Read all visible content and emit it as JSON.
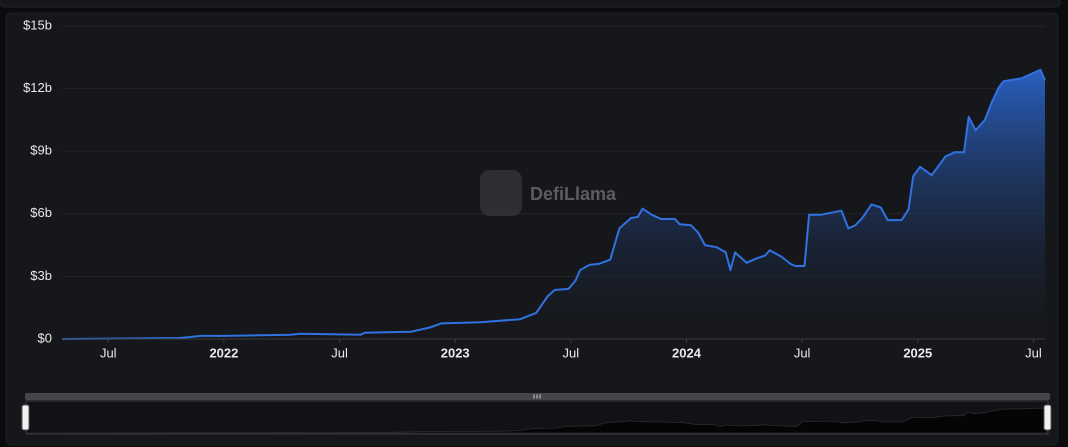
{
  "chart_data": {
    "type": "area",
    "watermark": "DefiLlama",
    "color": "#2f72e0",
    "grid": true,
    "xlim": [
      2021.3,
      2025.55
    ],
    "ylim": [
      0,
      15
    ],
    "xticks": [
      {
        "value": 2021.5,
        "label": "Jul"
      },
      2022,
      {
        "value": 2022.5,
        "label": "Jul"
      },
      2023,
      {
        "value": 2023.5,
        "label": "Jul"
      },
      2024,
      {
        "value": 2024.5,
        "label": "Jul"
      },
      2025,
      {
        "value": 2025.5,
        "label": "Jul"
      }
    ],
    "yticks": [
      {
        "value": 0,
        "label": "$0"
      },
      {
        "value": 3,
        "label": "$3b"
      },
      {
        "value": 6,
        "label": "$6b"
      },
      {
        "value": 9,
        "label": "$9b"
      },
      {
        "value": 12,
        "label": "$12b"
      },
      {
        "value": 15,
        "label": "$15b"
      }
    ],
    "x": [
      2021.3,
      2021.81,
      2021.9,
      2022,
      2022.29,
      2022.33,
      2022.59,
      2022.61,
      2022.81,
      2022.89,
      2022.94,
      2023.11,
      2023.28,
      2023.35,
      2023.4,
      2023.43,
      2023.49,
      2023.52,
      2023.54,
      2023.58,
      2023.62,
      2023.67,
      2023.71,
      2023.76,
      2023.79,
      2023.81,
      2023.85,
      2023.89,
      2023.95,
      2023.97,
      2024.02,
      2024.05,
      2024.08,
      2024.13,
      2024.17,
      2024.19,
      2024.21,
      2024.26,
      2024.3,
      2024.34,
      2024.36,
      2024.41,
      2024.45,
      2024.47,
      2024.51,
      2024.53,
      2024.58,
      2024.67,
      2024.7,
      2024.73,
      2024.76,
      2024.8,
      2024.84,
      2024.87,
      2024.93,
      2024.96,
      2024.98,
      2025.01,
      2025.06,
      2025.12,
      2025.16,
      2025.2,
      2025.22,
      2025.25,
      2025.29,
      2025.32,
      2025.35,
      2025.37,
      2025.45,
      2025.53,
      2025.55
    ],
    "values": [
      0,
      0.05,
      0.15,
      0.15,
      0.2,
      0.25,
      0.2,
      0.3,
      0.35,
      0.55,
      0.75,
      0.8,
      0.95,
      1.25,
      2.05,
      2.35,
      2.4,
      2.8,
      3.3,
      3.55,
      3.6,
      3.8,
      5.3,
      5.8,
      5.85,
      6.25,
      5.95,
      5.75,
      5.75,
      5.5,
      5.45,
      5.1,
      4.5,
      4.4,
      4.15,
      3.3,
      4.15,
      3.65,
      3.85,
      4.0,
      4.25,
      3.95,
      3.6,
      3.5,
      3.5,
      5.95,
      5.95,
      6.15,
      5.3,
      5.45,
      5.8,
      6.45,
      6.3,
      5.7,
      5.7,
      6.2,
      7.8,
      8.25,
      7.85,
      8.75,
      8.95,
      8.95,
      10.65,
      10.0,
      10.5,
      11.35,
      12.05,
      12.35,
      12.5,
      12.9,
      12.4
    ]
  }
}
